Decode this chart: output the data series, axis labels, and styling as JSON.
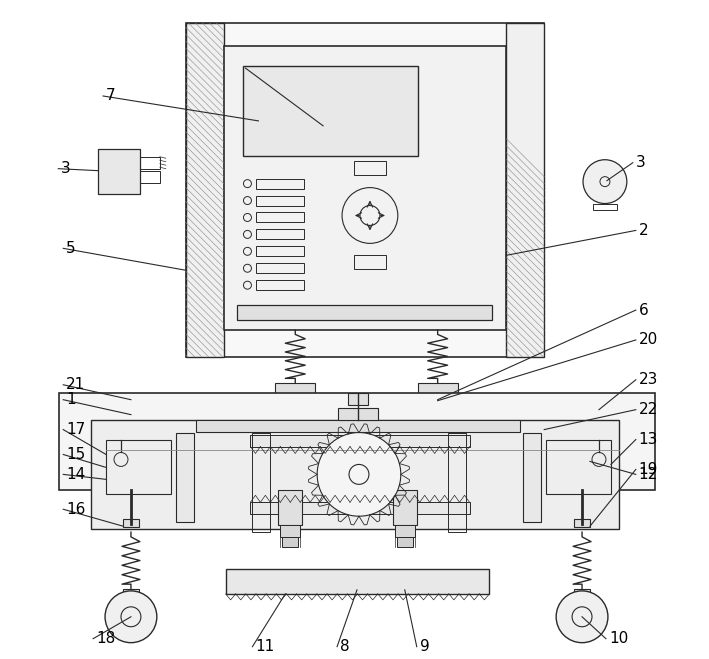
{
  "bg_color": "#ffffff",
  "line_color": "#2a2a2a",
  "lw": 1.0,
  "fig_w": 7.09,
  "fig_h": 6.59,
  "dpi": 100
}
